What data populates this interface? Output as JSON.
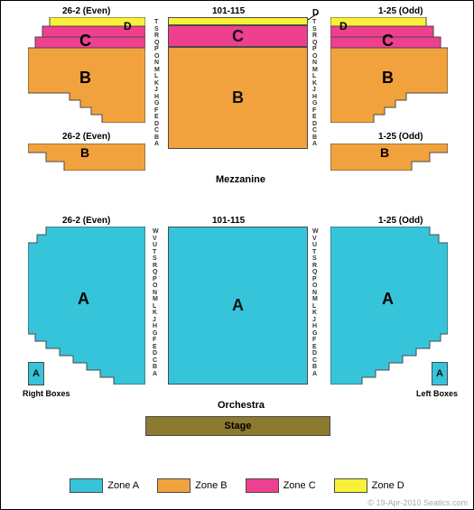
{
  "colors": {
    "zoneA": "#36c4db",
    "zoneB": "#f2a23c",
    "zoneC": "#ef3f8f",
    "zoneD": "#f9f03a",
    "stage": "#8c7a2f",
    "border": "#4a4a4a",
    "bg": "#ffffff"
  },
  "mezz": {
    "title": "Mezzanine",
    "center_label": "101-115",
    "left_label": "26-2 (Even)",
    "right_label": "1-25 (Odd)",
    "rows": [
      "T",
      "S",
      "R",
      "Q",
      "P",
      "O",
      "N",
      "M",
      "L",
      "K",
      "J",
      "H",
      "G",
      "F",
      "E",
      "D",
      "C",
      "B",
      "A"
    ],
    "center": {
      "d_line": "D"
    },
    "lower_left_label": "26-2 (Even)",
    "lower_right_label": "1-25 (Odd)"
  },
  "orch": {
    "title": "Orchestra",
    "center_label": "101-115",
    "left_label": "26-2 (Even)",
    "right_label": "1-25 (Odd)",
    "rows": [
      "W",
      "V",
      "U",
      "T",
      "S",
      "R",
      "Q",
      "P",
      "O",
      "N",
      "M",
      "L",
      "K",
      "J",
      "H",
      "G",
      "F",
      "E",
      "D",
      "C",
      "B",
      "A"
    ],
    "right_boxes": "Right Boxes",
    "left_boxes": "Left Boxes"
  },
  "stage": {
    "label": "Stage"
  },
  "legend": {
    "a": "Zone A",
    "b": "Zone B",
    "c": "Zone C",
    "d": "Zone D"
  },
  "letters": {
    "A": "A",
    "B": "B",
    "C": "C",
    "D": "D"
  },
  "credit": "© 19-Apr-2010 Seatics.com"
}
